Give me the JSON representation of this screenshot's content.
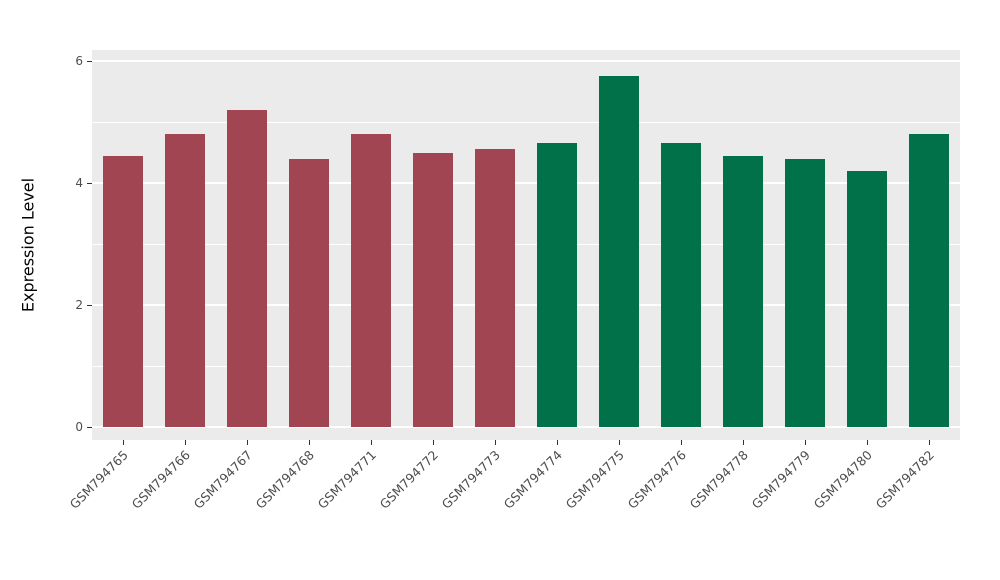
{
  "figure": {
    "background": "#FFFFFF",
    "panel_background": "#EBEBEB",
    "grid_color": "#FFFFFF",
    "tick_text_color": "#4D4D4D",
    "palette": {
      "maroon": "#A04551",
      "green": "#007148"
    }
  },
  "chart_data": {
    "type": "bar",
    "title": "",
    "xlabel": "",
    "ylabel": "Expression Level",
    "ylim": [
      0,
      6
    ],
    "yticks": [
      0,
      2,
      4,
      6
    ],
    "minor_ticks": [
      1,
      3,
      5
    ],
    "grid": true,
    "legend": "none",
    "categories": [
      "GSM794765",
      "GSM794766",
      "GSM794767",
      "GSM794768",
      "GSM794771",
      "GSM794772",
      "GSM794773",
      "GSM794774",
      "GSM794775",
      "GSM794776",
      "GSM794778",
      "GSM794779",
      "GSM794780",
      "GSM794782"
    ],
    "values": [
      4.45,
      4.8,
      5.2,
      4.4,
      4.8,
      4.5,
      4.55,
      4.65,
      5.75,
      4.65,
      4.45,
      4.4,
      4.2,
      4.8
    ],
    "bar_colors": [
      "#A04551",
      "#A04551",
      "#A04551",
      "#A04551",
      "#A04551",
      "#A04551",
      "#A04551",
      "#007148",
      "#007148",
      "#007148",
      "#007148",
      "#007148",
      "#007148",
      "#007148"
    ],
    "color_groups": [
      "maroon",
      "maroon",
      "maroon",
      "maroon",
      "maroon",
      "maroon",
      "maroon",
      "green",
      "green",
      "green",
      "green",
      "green",
      "green",
      "green"
    ]
  }
}
